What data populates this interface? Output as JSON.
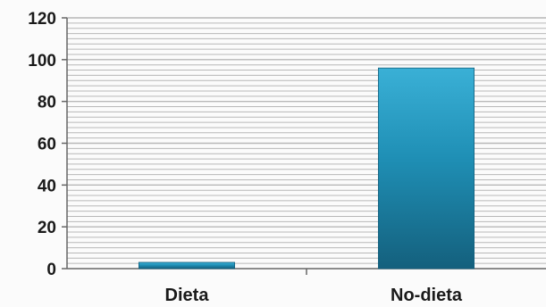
{
  "chart_data": {
    "type": "bar",
    "categories": [
      "Dieta",
      "No-dieta"
    ],
    "values": [
      3,
      96
    ],
    "title": "",
    "xlabel": "",
    "ylabel": "",
    "ylim": [
      0,
      120
    ],
    "yticks": [
      0,
      20,
      40,
      60,
      80,
      100,
      120
    ],
    "minor_grid_step": 2.5,
    "grid": true,
    "legend": "none",
    "colors": {
      "bar": "#1f8fb5",
      "bar_light": "#3ab0d6",
      "bar_dark": "#14607d",
      "grid": "#b8b8b8",
      "axis": "#666666",
      "background": "#fbfbfb"
    }
  }
}
